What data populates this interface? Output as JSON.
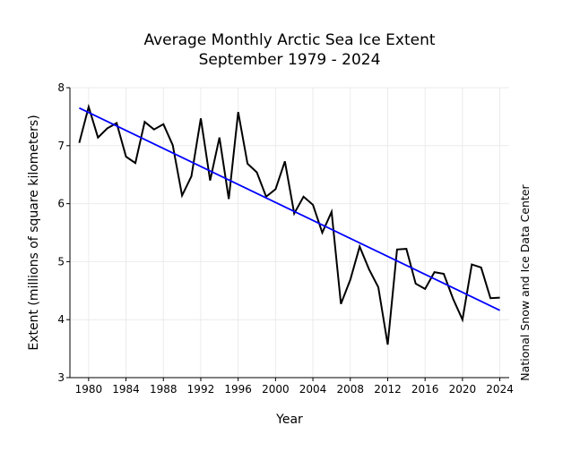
{
  "chart_data": {
    "type": "line",
    "title": "Average Monthly Arctic Sea Ice Extent",
    "subtitle": "September 1979 - 2024",
    "xlabel": "Year",
    "ylabel": "Extent (millions of square kilometers)",
    "source": "National Snow and Ice Data Center",
    "xlim": [
      1978,
      2025
    ],
    "ylim": [
      3,
      8
    ],
    "xticks": [
      1980,
      1984,
      1988,
      1992,
      1996,
      2000,
      2004,
      2008,
      2012,
      2016,
      2020,
      2024
    ],
    "yticks": [
      3,
      4,
      5,
      6,
      7,
      8
    ],
    "grid": true,
    "colors": {
      "data": "#000000",
      "trend": "#0000ff",
      "grid": "#ebebeb"
    },
    "x": [
      1979,
      1980,
      1981,
      1982,
      1983,
      1984,
      1985,
      1986,
      1987,
      1988,
      1989,
      1990,
      1991,
      1992,
      1993,
      1994,
      1995,
      1996,
      1997,
      1998,
      1999,
      2000,
      2001,
      2002,
      2003,
      2004,
      2005,
      2006,
      2007,
      2008,
      2009,
      2010,
      2011,
      2012,
      2013,
      2014,
      2015,
      2016,
      2017,
      2018,
      2019,
      2020,
      2021,
      2022,
      2023,
      2024
    ],
    "series": [
      {
        "values": [
          7.05,
          7.67,
          7.14,
          7.3,
          7.39,
          6.81,
          6.7,
          7.41,
          7.28,
          7.37,
          7.01,
          6.14,
          6.47,
          7.47,
          6.4,
          7.14,
          6.08,
          7.58,
          6.69,
          6.54,
          6.12,
          6.25,
          6.73,
          5.83,
          6.12,
          5.98,
          5.5,
          5.86,
          4.27,
          4.69,
          5.26,
          4.87,
          4.56,
          3.57,
          5.21,
          5.22,
          4.62,
          4.53,
          4.82,
          4.79,
          4.36,
          4.0,
          4.95,
          4.9,
          4.37,
          4.38
        ]
      }
    ],
    "trend": {
      "x": [
        1979,
        2024
      ],
      "y": [
        7.65,
        4.16
      ]
    }
  }
}
